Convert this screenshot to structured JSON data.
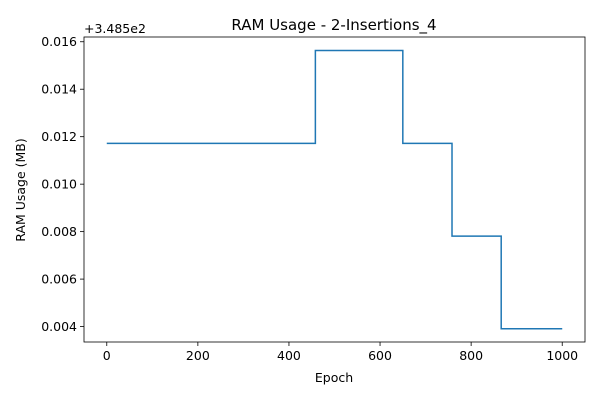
{
  "chart_data": {
    "type": "line",
    "title": "RAM Usage - 2-Insertions_4",
    "xlabel": "Epoch",
    "ylabel": "RAM Usage (MB)",
    "y_offset_label": "+3.485e2",
    "xlim": [
      -50,
      1050
    ],
    "ylim": [
      0.00335,
      0.0162
    ],
    "xticks": [
      0,
      200,
      400,
      600,
      800,
      1000
    ],
    "xtick_labels": [
      "0",
      "200",
      "400",
      "600",
      "800",
      "1000"
    ],
    "yticks": [
      0.004,
      0.006,
      0.008,
      0.01,
      0.012,
      0.014,
      0.016
    ],
    "ytick_labels": [
      "0.004",
      "0.006",
      "0.008",
      "0.010",
      "0.012",
      "0.014",
      "0.016"
    ],
    "grid": false,
    "line_color": "#1f77b4",
    "series": [
      {
        "x": [
          0,
          458,
          458,
          650,
          650,
          758,
          758,
          866,
          866,
          1000
        ],
        "y": [
          0.01172,
          0.01172,
          0.01563,
          0.01563,
          0.01172,
          0.01172,
          0.00781,
          0.00781,
          0.00391,
          0.00391
        ]
      }
    ]
  }
}
